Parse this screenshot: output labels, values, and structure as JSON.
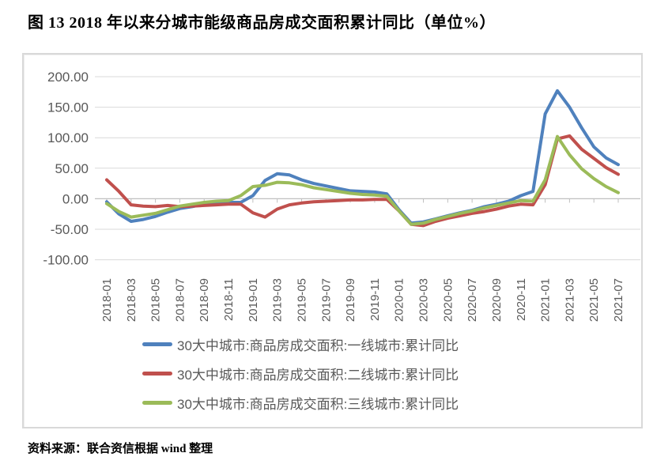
{
  "title": "图 13  2018 年以来分城市能级商品房成交面积累计同比（单位%）",
  "source": "资料来源：联合资信根据 wind 整理",
  "colors": {
    "tier1_line": "#4F81BD",
    "tier2_line": "#C0504D",
    "tier3_line": "#9BBB59",
    "gridline": "#D9D9D9",
    "zero_axis": "#BFBFBF",
    "axis_text": "#595959",
    "chart_border": "#D9D9D9"
  },
  "chart_data": {
    "type": "line",
    "title": "图 13  2018 年以来分城市能级商品房成交面积累计同比（单位%）",
    "unit": "%",
    "grid": true,
    "legend_position": "bottom",
    "ylim": [
      -100,
      200
    ],
    "y_ticks": [
      200,
      150,
      100,
      50,
      0,
      -50,
      -100
    ],
    "y_tick_labels": [
      "200.00",
      "150.00",
      "100.00",
      "50.00",
      "0.00",
      "-50.00",
      "-100.00"
    ],
    "x": [
      "2018-01",
      "2018-02",
      "2018-03",
      "2018-04",
      "2018-05",
      "2018-06",
      "2018-07",
      "2018-08",
      "2018-09",
      "2018-10",
      "2018-11",
      "2018-12",
      "2019-01",
      "2019-02",
      "2019-03",
      "2019-04",
      "2019-05",
      "2019-06",
      "2019-07",
      "2019-08",
      "2019-09",
      "2019-10",
      "2019-11",
      "2019-12",
      "2020-01",
      "2020-02",
      "2020-03",
      "2020-04",
      "2020-05",
      "2020-06",
      "2020-07",
      "2020-08",
      "2020-09",
      "2020-10",
      "2020-11",
      "2020-12",
      "2021-01",
      "2021-02",
      "2021-03",
      "2021-04",
      "2021-05",
      "2021-06",
      "2021-07"
    ],
    "x_tick_labels": [
      "2018-01",
      "2018-03",
      "2018-05",
      "2018-07",
      "2018-09",
      "2018-11",
      "2019-01",
      "2019-03",
      "2019-05",
      "2019-07",
      "2019-09",
      "2019-11",
      "2020-01",
      "2020-03",
      "2020-05",
      "2020-07",
      "2020-09",
      "2020-11",
      "2021-01",
      "2021-03",
      "2021-05",
      "2021-07"
    ],
    "series": [
      {
        "name": "30大中城市:商品房成交面积:一线城市:累计同比",
        "color": "#4F81BD",
        "values": [
          -5,
          -25,
          -37,
          -34,
          -29,
          -22,
          -16,
          -13,
          -9,
          -7,
          -6,
          -6,
          5,
          30,
          41,
          39,
          31,
          25,
          21,
          17,
          13,
          12,
          11,
          8,
          -18,
          -40,
          -38,
          -33,
          -28,
          -23,
          -19,
          -13,
          -9,
          -4,
          5,
          12,
          139,
          177,
          150,
          116,
          85,
          67,
          56
        ]
      },
      {
        "name": "30大中城市:商品房成交面积:二线城市:累计同比",
        "color": "#C0504D",
        "values": [
          31,
          12,
          -10,
          -12,
          -13,
          -11,
          -13,
          -12,
          -11,
          -10,
          -9,
          -9,
          -23,
          -30,
          -17,
          -10,
          -7,
          -5,
          -4,
          -3,
          -2,
          -2,
          -1,
          -1,
          -20,
          -42,
          -44,
          -37,
          -32,
          -28,
          -24,
          -21,
          -17,
          -12,
          -9,
          -10,
          23,
          98,
          103,
          81,
          66,
          51,
          40
        ]
      },
      {
        "name": "30大中城市:商品房成交面积:三线城市:累计同比",
        "color": "#9BBB59",
        "values": [
          -8,
          -21,
          -30,
          -27,
          -24,
          -18,
          -12,
          -9,
          -6,
          -4,
          -3,
          5,
          20,
          22,
          27,
          26,
          23,
          18,
          15,
          12,
          9,
          7,
          6,
          4,
          -20,
          -42,
          -40,
          -34,
          -29,
          -24,
          -20,
          -15,
          -11,
          -7,
          -3,
          -4,
          31,
          102,
          72,
          49,
          33,
          20,
          10
        ]
      }
    ]
  }
}
